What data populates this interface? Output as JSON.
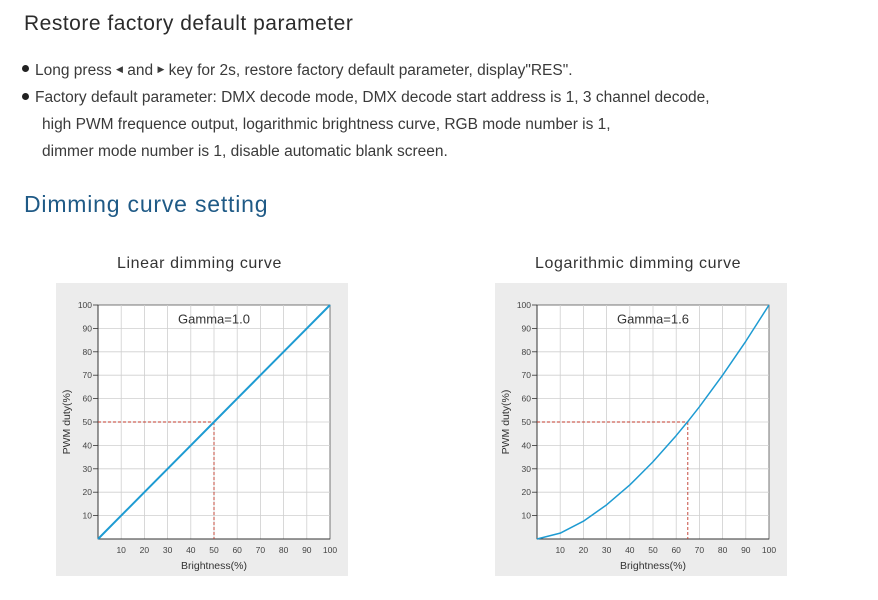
{
  "section1": {
    "title": "Restore factory default parameter",
    "bullet1": {
      "pre": "Long press",
      "left_key_icon": "left-triangle-key",
      "mid": "and",
      "right_key_icon": "right-triangle-key",
      "post": "key for 2s, restore factory default parameter, display\"RES\"."
    },
    "bullet2_lines": [
      "Factory default parameter: DMX decode mode, DMX decode start address is 1, 3 channel decode,",
      "high PWM frequence output, logarithmic brightness curve, RGB mode number is 1,",
      "dimmer mode number is 1, disable automatic blank screen."
    ]
  },
  "section2": {
    "title": "Dimming curve setting"
  },
  "colors": {
    "curve": "#1e9bd2",
    "marker": "#c0392b",
    "heading_blue": "#1f5a86",
    "panel_bg": "#ececec"
  },
  "chart_data": [
    {
      "type": "line",
      "title": "Linear dimming curve",
      "annotation": "Gamma=1.0",
      "gamma": 1.0,
      "xlabel": "Brightness(%)",
      "ylabel": "PWM duty(%)",
      "xlim": [
        0,
        100
      ],
      "ylim": [
        0,
        100
      ],
      "x_ticks": [
        10,
        20,
        30,
        40,
        50,
        60,
        70,
        80,
        90,
        100
      ],
      "y_ticks": [
        10,
        20,
        30,
        40,
        50,
        60,
        70,
        80,
        90,
        100
      ],
      "grid": true,
      "series": [
        {
          "x": [
            0,
            10,
            20,
            30,
            40,
            50,
            60,
            70,
            80,
            90,
            100
          ],
          "y": [
            0,
            10,
            20,
            30,
            40,
            50,
            60,
            70,
            80,
            90,
            100
          ]
        }
      ],
      "marker": {
        "x": 50,
        "y": 50
      }
    },
    {
      "type": "line",
      "title": "Logarithmic dimming curve",
      "annotation": "Gamma=1.6",
      "gamma": 1.6,
      "xlabel": "Brightness(%)",
      "ylabel": "PWM duty(%)",
      "xlim": [
        0,
        100
      ],
      "ylim": [
        0,
        100
      ],
      "x_ticks": [
        10,
        20,
        30,
        40,
        50,
        60,
        70,
        80,
        90,
        100
      ],
      "y_ticks": [
        10,
        20,
        30,
        40,
        50,
        60,
        70,
        80,
        90,
        100
      ],
      "grid": true,
      "series": [
        {
          "x": [
            0,
            10,
            20,
            30,
            40,
            50,
            60,
            65,
            70,
            80,
            90,
            100
          ],
          "y": [
            0,
            2.5,
            7.6,
            14.6,
            23.1,
            33.0,
            44.2,
            50.2,
            56.5,
            70.0,
            84.5,
            100
          ]
        }
      ],
      "marker": {
        "x": 65,
        "y": 50
      }
    }
  ]
}
